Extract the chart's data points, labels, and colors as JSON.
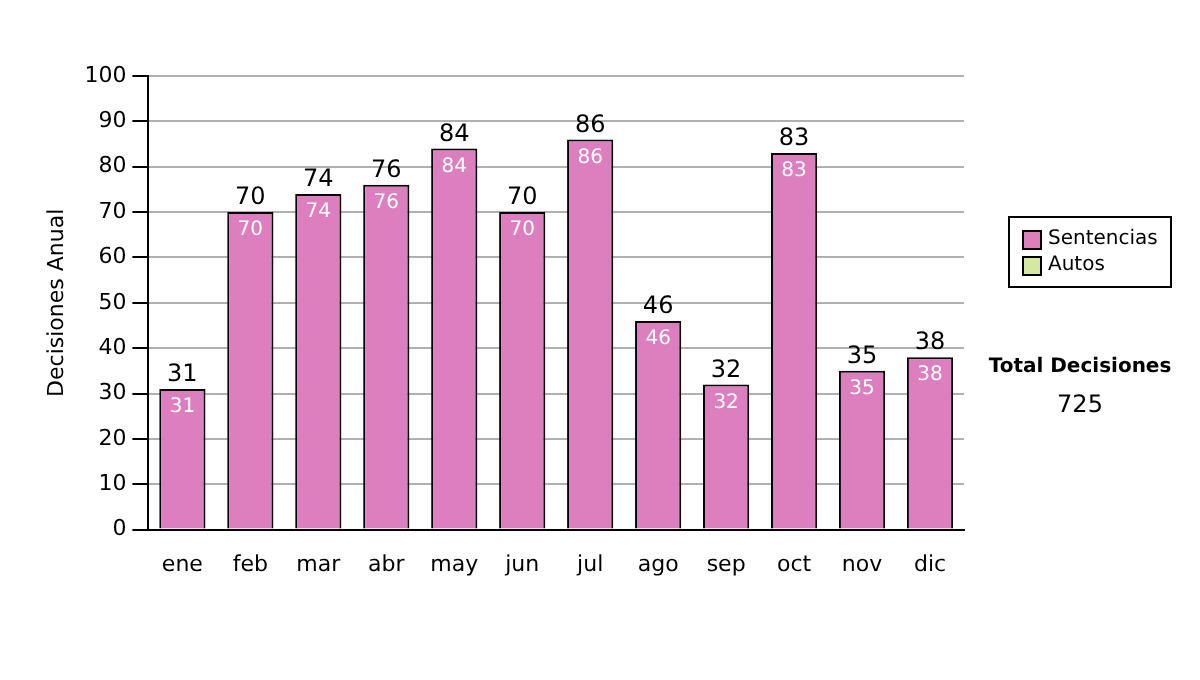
{
  "chart_data": {
    "type": "bar",
    "ylabel": "Decisiones Anual",
    "categories": [
      "ene",
      "feb",
      "mar",
      "abr",
      "may",
      "jun",
      "jul",
      "ago",
      "sep",
      "oct",
      "nov",
      "dic"
    ],
    "series": [
      {
        "name": "Sentencias",
        "color": "#dd7fbf",
        "values": [
          31,
          70,
          74,
          76,
          84,
          70,
          86,
          46,
          32,
          83,
          35,
          38
        ],
        "value_labels": [
          "31",
          "70",
          "74",
          "76",
          "84",
          "70",
          "86",
          "46",
          "32",
          "83",
          "35",
          "38"
        ]
      },
      {
        "name": "Autos",
        "color": "#d4e8a0",
        "values": [
          0,
          0,
          0,
          0,
          0,
          0,
          0,
          0,
          0,
          0,
          0,
          0
        ]
      }
    ],
    "stacked": true,
    "totals": [
      "31",
      "70",
      "74",
      "76",
      "84",
      "70",
      "86",
      "46",
      "32",
      "83",
      "35",
      "38"
    ],
    "ylim": [
      0,
      100
    ],
    "yticks": [
      0,
      10,
      20,
      30,
      40,
      50,
      60,
      70,
      80,
      90,
      100
    ],
    "grid": "y",
    "legend": "right",
    "annotations": [
      "Total Decisiones",
      "725"
    ]
  }
}
